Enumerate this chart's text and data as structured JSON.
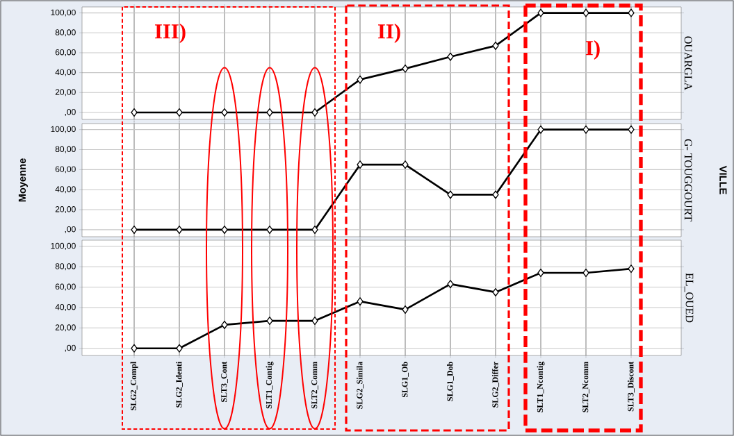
{
  "chart_data": [
    {
      "type": "line",
      "title": "OUARGLA",
      "categories": [
        null,
        null,
        null,
        null,
        null,
        null,
        null,
        null,
        null,
        null,
        null,
        null
      ],
      "values": [
        0,
        0,
        0,
        0,
        0,
        33,
        44,
        56,
        67,
        100,
        100,
        100
      ],
      "color": "#000000",
      "marker": "diamond",
      "grid": true,
      "tick_labels": "y",
      "ylim": [
        -7,
        106
      ],
      "yticks": [
        {
          "value": 0,
          "label": ",00"
        },
        {
          "value": 20,
          "label": "20,00"
        },
        {
          "value": 40,
          "label": "40,00"
        },
        {
          "value": 60,
          "label": "60,00"
        },
        {
          "value": 80,
          "label": "80,00"
        },
        {
          "value": 100,
          "label": "100,00"
        }
      ],
      "annotations": [
        "III)",
        "II)",
        "I)"
      ]
    },
    {
      "type": "line",
      "title": "G- TOUGGOURT",
      "ylabel": "Moyenne",
      "y2label": "VILLE",
      "categories": [
        null,
        null,
        null,
        null,
        null,
        null,
        null,
        null,
        null,
        null,
        null,
        null
      ],
      "values": [
        0,
        0,
        0,
        0,
        0,
        65,
        65,
        35,
        35,
        100,
        100,
        100
      ],
      "color": "#000000",
      "marker": "diamond",
      "grid": true,
      "tick_labels": "y",
      "ylim": [
        -7,
        106
      ],
      "yticks": [
        {
          "value": 0,
          "label": ",00"
        },
        {
          "value": 20,
          "label": "20,00"
        },
        {
          "value": 40,
          "label": "40,00"
        },
        {
          "value": 60,
          "label": "60,00"
        },
        {
          "value": 80,
          "label": "80,00"
        },
        {
          "value": 100,
          "label": "100,00"
        }
      ]
    },
    {
      "type": "line",
      "title": "EL_OUED",
      "categories": [
        "SLG2_Compl",
        "SLG2_Identi",
        "SLT3_Cont",
        "SLT1_Contig",
        "SLT2_Comm",
        "SLG2_Simila",
        "SLG1_Ob",
        "SLG1_Dob",
        "SLG2_Differ",
        "SLT1_Ncontig",
        "SLT2_Ncomm",
        "SLT3_Discont"
      ],
      "values": [
        0,
        0,
        23,
        27,
        27,
        46,
        38,
        63,
        55,
        74,
        74,
        78
      ],
      "color": "#000000",
      "marker": "diamond",
      "grid": true,
      "ylim": [
        -7,
        106
      ],
      "yticks": [
        {
          "value": 0,
          "label": ",00"
        },
        {
          "value": 20,
          "label": "20,00"
        },
        {
          "value": 40,
          "label": "40,00"
        },
        {
          "value": 60,
          "label": "60,00"
        },
        {
          "value": 80,
          "label": "80,00"
        },
        {
          "value": 100,
          "label": "100,00"
        }
      ]
    }
  ]
}
